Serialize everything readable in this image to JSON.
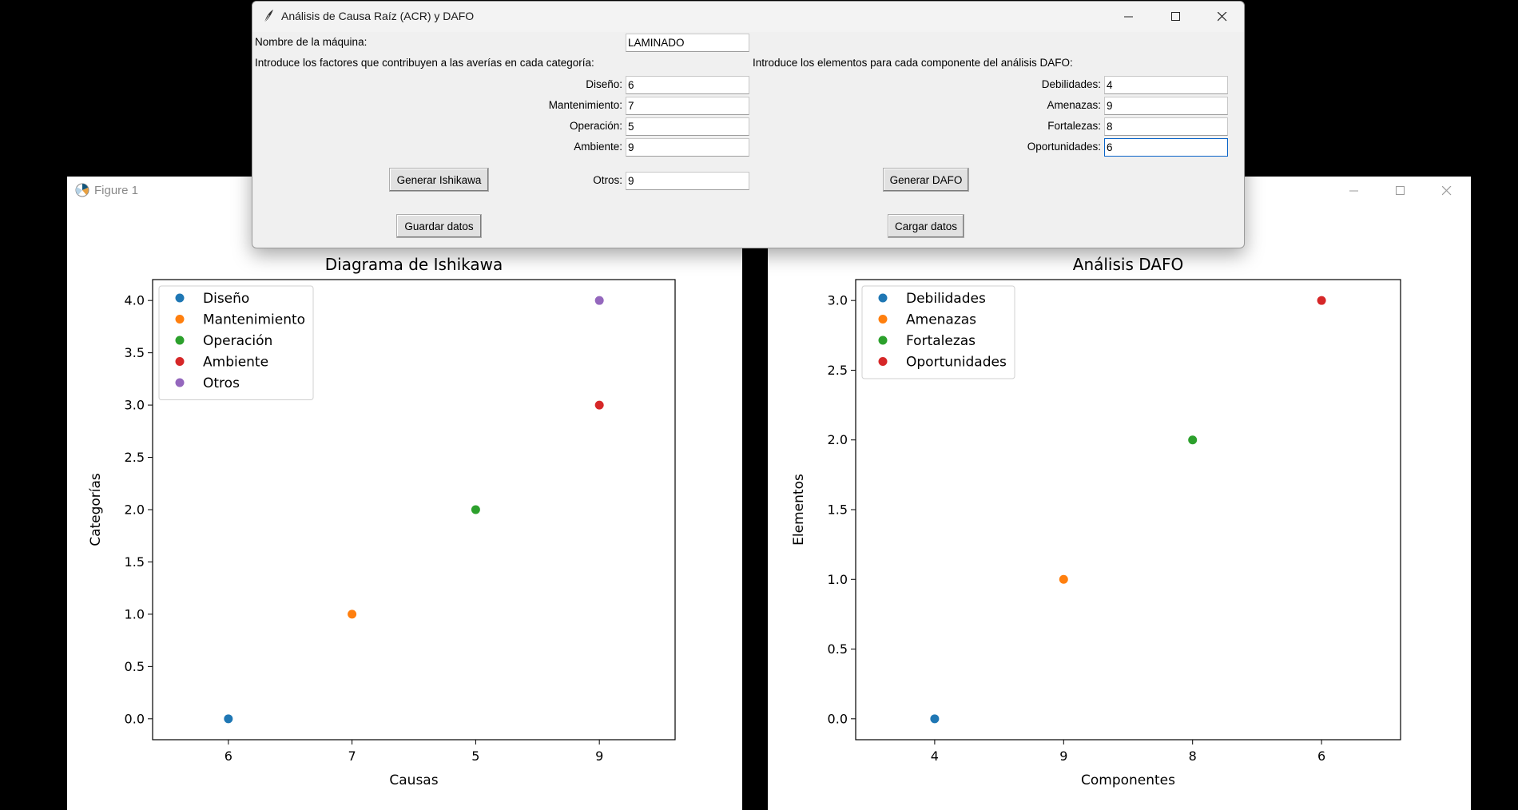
{
  "tk_window": {
    "title": "Análisis de Causa Raíz (ACR) y DAFO",
    "machine_label": "Nombre de la máquina:",
    "machine_value": "LAMINADO",
    "acr_intro": "Introduce los factores que contribuyen a las averías en cada categoría:",
    "dafo_intro": "Introduce los elementos para cada componente del análisis DAFO:",
    "acr_fields": [
      {
        "label": "Diseño:",
        "value": "6"
      },
      {
        "label": "Mantenimiento:",
        "value": "7"
      },
      {
        "label": "Operación:",
        "value": "5"
      },
      {
        "label": "Ambiente:",
        "value": "9"
      },
      {
        "label": "Otros:",
        "value": "9"
      }
    ],
    "dafo_fields": [
      {
        "label": "Debilidades:",
        "value": "4"
      },
      {
        "label": "Amenazas:",
        "value": "9"
      },
      {
        "label": "Fortalezas:",
        "value": "8"
      },
      {
        "label": "Oportunidades:",
        "value": "6"
      }
    ],
    "buttons": {
      "generate_ishikawa": "Generar Ishikawa",
      "save": "Guardar datos",
      "generate_dafo": "Generar DAFO",
      "load": "Cargar datos"
    }
  },
  "figure_window": {
    "title": "Figure 1"
  },
  "chart_data": [
    {
      "type": "scatter",
      "title": "Diagrama de Ishikawa",
      "xlabel": "Causas",
      "ylabel": "Categorías",
      "categories": [
        "6",
        "7",
        "5",
        "9"
      ],
      "ylim": [
        -0.2,
        4.2
      ],
      "yticks": [
        "0.0",
        "0.5",
        "1.0",
        "1.5",
        "2.0",
        "2.5",
        "3.0",
        "3.5",
        "4.0"
      ],
      "legend_position": "top-left",
      "series": [
        {
          "name": "Diseño",
          "x": "6",
          "y": 0,
          "color": "#1f77b4"
        },
        {
          "name": "Mantenimiento",
          "x": "7",
          "y": 1,
          "color": "#ff7f0e"
        },
        {
          "name": "Operación",
          "x": "5",
          "y": 2,
          "color": "#2ca02c"
        },
        {
          "name": "Ambiente",
          "x": "9",
          "y": 3,
          "color": "#d62728"
        },
        {
          "name": "Otros",
          "x": "9",
          "y": 4,
          "color": "#9467bd"
        }
      ]
    },
    {
      "type": "scatter",
      "title": "Análisis DAFO",
      "xlabel": "Componentes",
      "ylabel": "Elementos",
      "categories": [
        "4",
        "9",
        "8",
        "6"
      ],
      "ylim": [
        -0.15,
        3.15
      ],
      "yticks": [
        "0.0",
        "0.5",
        "1.0",
        "1.5",
        "2.0",
        "2.5",
        "3.0"
      ],
      "legend_position": "top-left",
      "series": [
        {
          "name": "Debilidades",
          "x": "4",
          "y": 0,
          "color": "#1f77b4"
        },
        {
          "name": "Amenazas",
          "x": "9",
          "y": 1,
          "color": "#ff7f0e"
        },
        {
          "name": "Fortalezas",
          "x": "8",
          "y": 2,
          "color": "#2ca02c"
        },
        {
          "name": "Oportunidades",
          "x": "6",
          "y": 3,
          "color": "#d62728"
        }
      ]
    }
  ]
}
